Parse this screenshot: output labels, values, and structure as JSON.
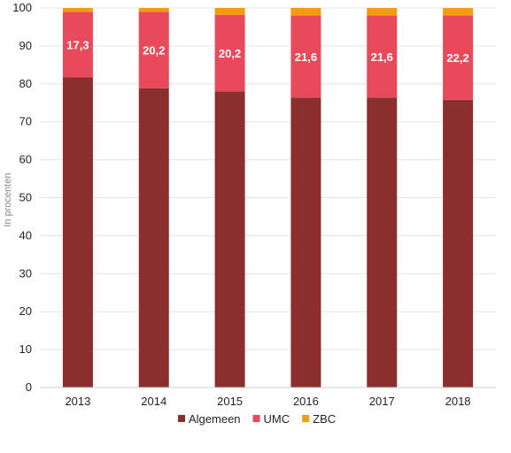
{
  "chart_data": {
    "type": "bar",
    "stacked": true,
    "categories": [
      "2013",
      "2014",
      "2015",
      "2016",
      "2017",
      "2018"
    ],
    "series": [
      {
        "name": "Algemeen",
        "color": "#8b2e2e",
        "values": [
          81.7,
          78.8,
          78.0,
          76.4,
          76.4,
          75.8
        ]
      },
      {
        "name": "UMC",
        "color": "#e94a5b",
        "values": [
          17.3,
          20.2,
          20.2,
          21.6,
          21.6,
          22.2
        ]
      },
      {
        "name": "ZBC",
        "color": "#f39c12",
        "values": [
          1.0,
          1.0,
          1.8,
          2.0,
          2.0,
          2.0
        ]
      }
    ],
    "data_labels": {
      "series": "UMC",
      "values": [
        "17,3",
        "20,2",
        "20,2",
        "21,6",
        "21,6",
        "22,2"
      ]
    },
    "yticks": [
      "0",
      "10",
      "20",
      "30",
      "40",
      "50",
      "60",
      "70",
      "80",
      "90",
      "100"
    ],
    "ylim": [
      0,
      100
    ],
    "ylabel": "In procenten",
    "xlabel": "",
    "grid": true,
    "legend_position": "bottom"
  }
}
